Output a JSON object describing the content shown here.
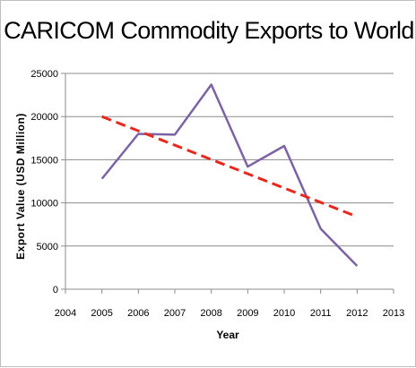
{
  "chart_data": {
    "type": "line",
    "title": "CARICOM Commodity Exports to World",
    "xlabel": "Year",
    "ylabel": "Export Value  (USD Million)",
    "xlim": [
      2004,
      2013
    ],
    "ylim": [
      0,
      25000
    ],
    "x_ticks": [
      "2004",
      "2005",
      "2006",
      "2007",
      "2008",
      "2009",
      "2010",
      "2011",
      "2012",
      "2013"
    ],
    "y_ticks": [
      "0",
      "5000",
      "10000",
      "15000",
      "20000",
      "25000"
    ],
    "grid": "horizontal",
    "series": [
      {
        "color": "#7b63a6",
        "style": "solid",
        "x": [
          2005,
          2006,
          2007,
          2008,
          2009,
          2010,
          2011,
          2012
        ],
        "values": [
          12800,
          18000,
          17900,
          23700,
          14200,
          16600,
          7000,
          2700
        ]
      },
      {
        "color": "#e8281c",
        "style": "dashed",
        "x": [
          2005,
          2012
        ],
        "values": [
          20000,
          8400
        ]
      }
    ]
  }
}
